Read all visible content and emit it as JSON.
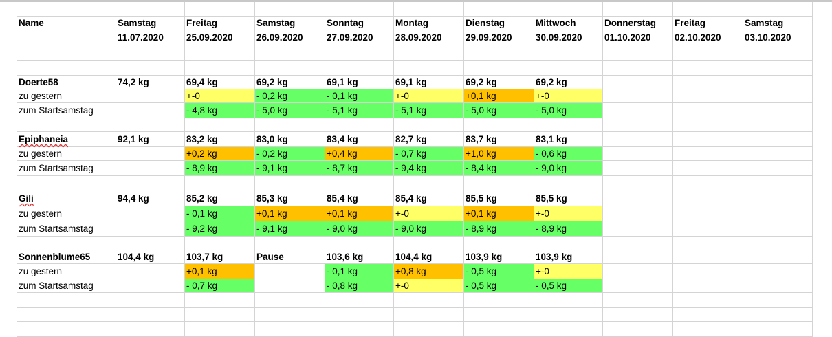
{
  "colors": {
    "green": "#66ff66",
    "yellow": "#ffff66",
    "orange": "#ffc000",
    "grid": "#d4d4d4"
  },
  "header": {
    "name_label": "Name",
    "columns": [
      {
        "day": "Samstag",
        "date": "11.07.2020"
      },
      {
        "day": "Freitag",
        "date": "25.09.2020"
      },
      {
        "day": "Samstag",
        "date": "26.09.2020"
      },
      {
        "day": "Sonntag",
        "date": "27.09.2020"
      },
      {
        "day": "Montag",
        "date": "28.09.2020"
      },
      {
        "day": "Dienstag",
        "date": "29.09.2020"
      },
      {
        "day": "Mittwoch",
        "date": "30.09.2020"
      },
      {
        "day": "Donnerstag",
        "date": "01.10.2020"
      },
      {
        "day": "Freitag",
        "date": "02.10.2020"
      },
      {
        "day": "Samstag",
        "date": "03.10.2020"
      }
    ]
  },
  "labels": {
    "daily": "zu gestern",
    "start": "zum Startsamstag"
  },
  "people": [
    {
      "name": "Doerte58",
      "spellcheck": false,
      "weights": [
        "74,2 kg",
        "69,4 kg",
        "69,2 kg",
        "69,1 kg",
        "69,1 kg",
        "69,2 kg",
        "69,2 kg"
      ],
      "daily": [
        null,
        "+-0",
        "- 0,2 kg",
        "- 0,1 kg",
        "+-0",
        "+0,1 kg",
        "+-0"
      ],
      "daily_color": [
        null,
        "yellow",
        "green",
        "green",
        "yellow",
        "orange",
        "yellow"
      ],
      "start": [
        null,
        "- 4,8 kg",
        "- 5,0 kg",
        "- 5,1 kg",
        "- 5,1 kg",
        "- 5,0 kg",
        "- 5,0 kg"
      ],
      "start_color": [
        null,
        "green",
        "green",
        "green",
        "green",
        "green",
        "green"
      ]
    },
    {
      "name": "Epiphaneia",
      "spellcheck": true,
      "weights": [
        "92,1 kg",
        "83,2 kg",
        "83,0 kg",
        "83,4 kg",
        "82,7 kg",
        "83,7 kg",
        "83,1 kg"
      ],
      "daily": [
        null,
        "+0,2 kg",
        "- 0,2 kg",
        "+0,4 kg",
        "- 0,7 kg",
        "+1,0 kg",
        "- 0,6 kg"
      ],
      "daily_color": [
        null,
        "orange",
        "green",
        "orange",
        "green",
        "orange",
        "green"
      ],
      "start": [
        null,
        "- 8,9 kg",
        "- 9,1 kg",
        "- 8,7 kg",
        "- 9,4 kg",
        "- 8,4 kg",
        "- 9,0 kg"
      ],
      "start_color": [
        null,
        "green",
        "green",
        "green",
        "green",
        "green",
        "green"
      ]
    },
    {
      "name": "Gili",
      "spellcheck": true,
      "weights": [
        "94,4 kg",
        "85,2 kg",
        "85,3 kg",
        "85,4 kg",
        "85,4 kg",
        "85,5 kg",
        "85,5 kg"
      ],
      "daily": [
        null,
        "- 0,1 kg",
        "+0,1 kg",
        "+0,1 kg",
        "+-0",
        "+0,1 kg",
        "+-0"
      ],
      "daily_color": [
        null,
        "green",
        "orange",
        "orange",
        "yellow",
        "orange",
        "yellow"
      ],
      "start": [
        null,
        "- 9,2 kg",
        "- 9,1 kg",
        "- 9,0 kg",
        "- 9,0 kg",
        "- 8,9 kg",
        "- 8,9 kg"
      ],
      "start_color": [
        null,
        "green",
        "green",
        "green",
        "green",
        "green",
        "green"
      ]
    },
    {
      "name": "Sonnenblume65",
      "spellcheck": false,
      "weights": [
        "104,4 kg",
        "103,7 kg",
        "Pause",
        "103,6 kg",
        "104,4 kg",
        "103,9 kg",
        "103,9 kg"
      ],
      "daily": [
        null,
        "+0,1 kg",
        null,
        "- 0,1 kg",
        "+0,8 kg",
        "- 0,5 kg",
        "+-0"
      ],
      "daily_color": [
        null,
        "orange",
        null,
        "green",
        "orange",
        "green",
        "yellow"
      ],
      "start": [
        null,
        "- 0,7 kg",
        null,
        "- 0,8 kg",
        "+-0",
        "- 0,5 kg",
        "- 0,5 kg"
      ],
      "start_color": [
        null,
        "green",
        null,
        "green",
        "yellow",
        "green",
        "green"
      ]
    }
  ]
}
